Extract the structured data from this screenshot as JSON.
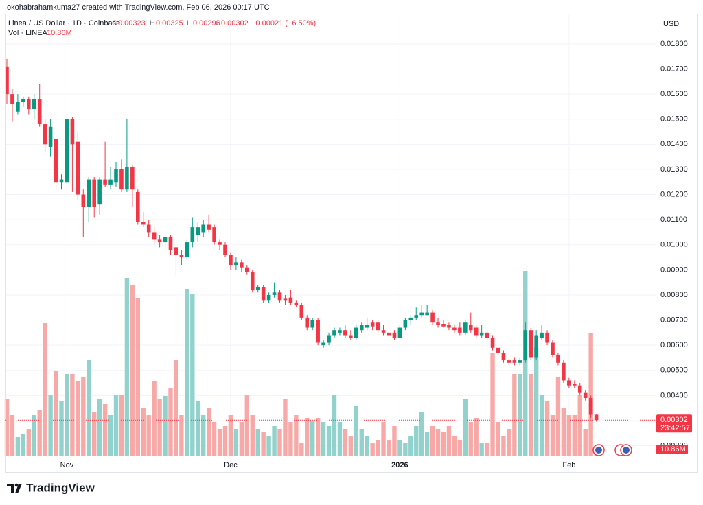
{
  "attribution": "okohabrahamkuma27 created with TradingView.com, Feb 06, 2026 00:17 UTC",
  "logo": "TradingView",
  "chart_data": {
    "type": "candlestick",
    "title": "Linea / US Dollar · 1D · Coinbase",
    "ohlc_labels": [
      "O",
      "H",
      "L",
      "C"
    ],
    "change": "−0.00021 (−6.50%)",
    "volume_title": "Vol · LINEA",
    "last_volume_label": "10.86M",
    "currency": "USD",
    "countdown": "23:42:57",
    "up_color": "#089981",
    "down_color": "#f23645",
    "volume_up_color": "#92d2cc",
    "volume_down_color": "#f7a9a7",
    "grid": true,
    "categories": [
      null,
      null,
      null,
      null,
      null,
      null,
      null,
      null,
      null,
      null,
      null,
      "Nov",
      null,
      null,
      null,
      null,
      null,
      null,
      null,
      null,
      null,
      null,
      null,
      null,
      null,
      null,
      null,
      null,
      null,
      null,
      null,
      null,
      null,
      null,
      null,
      null,
      null,
      null,
      null,
      null,
      null,
      "Dec",
      null,
      null,
      null,
      null,
      null,
      null,
      null,
      null,
      null,
      null,
      null,
      null,
      null,
      null,
      null,
      null,
      null,
      null,
      null,
      null,
      null,
      null,
      null,
      null,
      null,
      null,
      null,
      null,
      null,
      null,
      "2026",
      null,
      null,
      null,
      null,
      null,
      null,
      null,
      null,
      null,
      null,
      null,
      null,
      null,
      null,
      null,
      null,
      null,
      null,
      null,
      null,
      null,
      null,
      null,
      null,
      null,
      null,
      null,
      null,
      null,
      null,
      "Feb",
      null,
      null,
      null,
      null,
      null
    ],
    "open": [
      0.0171,
      0.016,
      0.0153,
      0.0157,
      0.0158,
      0.0154,
      0.0158,
      0.0148,
      0.0139,
      0.0142,
      0.0125,
      0.0125,
      0.015,
      0.0141,
      0.012,
      0.0115,
      0.0126,
      0.0116,
      0.0126,
      0.0124,
      0.0125,
      0.013,
      0.0122,
      0.0131,
      0.0121,
      0.0109,
      0.0108,
      0.0105,
      0.0102,
      0.0101,
      0.0103,
      0.0099,
      0.0096,
      0.0095,
      0.0101,
      0.0104,
      0.0105,
      0.0108,
      0.0107,
      0.0101,
      0.01,
      0.0096,
      0.0092,
      0.0093,
      0.0091,
      0.0089,
      0.0082,
      0.0083,
      0.0078,
      0.008,
      0.0081,
      0.00785,
      0.0079,
      0.0077,
      0.0076,
      0.0071,
      0.0067,
      0.007,
      0.006,
      0.0061,
      0.0064,
      0.0065,
      0.0066,
      0.0064,
      0.0063,
      0.0066,
      0.0067,
      0.0069,
      0.0069,
      0.0066,
      0.0065,
      0.0065,
      0.0063,
      0.0067,
      0.007,
      0.0071,
      0.0072,
      0.0072,
      0.0073,
      0.0069,
      0.00685,
      0.0068,
      0.0067,
      0.0067,
      0.0065,
      0.0068,
      0.0067,
      0.0064,
      0.0065,
      0.0063,
      0.0059,
      0.0057,
      0.0054,
      0.0054,
      0.0053,
      0.0054,
      0.0066,
      0.0055,
      0.0063,
      0.0065,
      0.0061,
      0.0056,
      0.0053,
      0.0046,
      0.00445,
      0.0044,
      0.0041,
      0.0039,
      0.00323
    ],
    "high": [
      0.0174,
      0.0162,
      0.016,
      0.0159,
      0.0159,
      0.016,
      0.0164,
      0.015,
      0.015,
      0.0143,
      0.0128,
      0.0151,
      0.0151,
      0.0145,
      0.0122,
      0.0127,
      0.0127,
      0.0127,
      0.0141,
      0.0131,
      0.0133,
      0.0134,
      0.015,
      0.0132,
      0.0122,
      0.0113,
      0.011,
      0.0107,
      0.0104,
      0.0104,
      0.0104,
      0.01,
      0.0098,
      0.0102,
      0.0111,
      0.0109,
      0.011,
      0.0112,
      0.0108,
      0.0102,
      0.0101,
      0.0097,
      0.0095,
      0.0094,
      0.0092,
      0.009,
      0.0084,
      0.0084,
      0.0081,
      0.0085,
      0.0082,
      0.008,
      0.0082,
      0.0078,
      0.0077,
      0.0072,
      0.0071,
      0.0071,
      0.0062,
      0.0065,
      0.0067,
      0.0067,
      0.0068,
      0.0066,
      0.0068,
      0.0069,
      0.0071,
      0.007,
      0.007,
      0.0068,
      0.0066,
      0.0066,
      0.0068,
      0.0071,
      0.0072,
      0.0075,
      0.0076,
      0.0076,
      0.0074,
      0.0071,
      0.007,
      0.0069,
      0.0068,
      0.0069,
      0.007,
      0.0073,
      0.0068,
      0.0068,
      0.0066,
      0.0064,
      0.006,
      0.0058,
      0.0055,
      0.0055,
      0.0055,
      0.0069,
      0.0067,
      0.0066,
      0.0068,
      0.0066,
      0.0062,
      0.0057,
      0.0054,
      0.0047,
      0.0046,
      0.0045,
      0.0042,
      0.004,
      0.00325
    ],
    "low": [
      0.0156,
      0.0149,
      0.0152,
      0.0155,
      0.0152,
      0.015,
      0.0147,
      0.0137,
      0.0135,
      0.0122,
      0.0122,
      0.0124,
      0.0121,
      0.0118,
      0.0103,
      0.0109,
      0.0111,
      0.0112,
      0.0123,
      0.0122,
      0.0123,
      0.0121,
      0.0121,
      0.0115,
      0.0108,
      0.0107,
      0.0103,
      0.01,
      0.0099,
      0.0098,
      0.0096,
      0.0087,
      0.0092,
      0.0094,
      0.0099,
      0.0101,
      0.0103,
      0.0105,
      0.01,
      0.0098,
      0.0095,
      0.009,
      0.009,
      0.0089,
      0.0088,
      0.0081,
      0.0081,
      0.0077,
      0.0077,
      0.0079,
      0.0077,
      0.0076,
      0.0076,
      0.0075,
      0.007,
      0.0066,
      0.0066,
      0.006,
      0.0059,
      0.006,
      0.0063,
      0.0064,
      0.0063,
      0.0062,
      0.0062,
      0.0065,
      0.0066,
      0.0066,
      0.0065,
      0.0064,
      0.0063,
      0.0062,
      0.0063,
      0.0066,
      0.0068,
      0.007,
      0.0071,
      0.0072,
      0.0068,
      0.0067,
      0.0067,
      0.0066,
      0.0065,
      0.0064,
      0.0064,
      0.0065,
      0.0063,
      0.0063,
      0.0062,
      0.0058,
      0.0056,
      0.0053,
      0.0052,
      0.0052,
      0.0052,
      0.0053,
      0.0054,
      0.0054,
      0.0062,
      0.006,
      0.0055,
      0.0052,
      0.0045,
      0.0043,
      0.0043,
      0.004,
      0.0038,
      0.0031,
      0.00296
    ],
    "close": [
      0.016,
      0.0156,
      0.0157,
      0.0158,
      0.0154,
      0.0158,
      0.0148,
      0.014,
      0.0147,
      0.0125,
      0.0126,
      0.015,
      0.014,
      0.012,
      0.0115,
      0.0126,
      0.0115,
      0.0126,
      0.0124,
      0.0126,
      0.013,
      0.0122,
      0.0131,
      0.0122,
      0.0109,
      0.0108,
      0.0105,
      0.0102,
      0.0101,
      0.0103,
      0.0098,
      0.0096,
      0.0095,
      0.0101,
      0.0107,
      0.0107,
      0.0108,
      0.0106,
      0.0101,
      0.01,
      0.0096,
      0.0092,
      0.0093,
      0.0091,
      0.0089,
      0.0082,
      0.0083,
      0.0078,
      0.008,
      0.0081,
      0.0078,
      0.0078,
      0.0077,
      0.0076,
      0.0071,
      0.0067,
      0.007,
      0.0061,
      0.0061,
      0.0064,
      0.0066,
      0.0066,
      0.0064,
      0.0063,
      0.0067,
      0.0068,
      0.0068,
      0.00675,
      0.0066,
      0.0065,
      0.0064,
      0.0063,
      0.0067,
      0.007,
      0.0071,
      0.0072,
      0.0073,
      0.0073,
      0.0069,
      0.0068,
      0.00675,
      0.0067,
      0.0066,
      0.0065,
      0.0069,
      0.0066,
      0.0064,
      0.0065,
      0.0063,
      0.0059,
      0.0057,
      0.0054,
      0.0053,
      0.0053,
      0.0054,
      0.0066,
      0.0055,
      0.0064,
      0.0065,
      0.0061,
      0.0056,
      0.0053,
      0.0046,
      0.0044,
      0.0044,
      0.0041,
      0.0039,
      0.00323,
      0.00302
    ],
    "volume": [
      84,
      60,
      28,
      32,
      40,
      60,
      68,
      194,
      90,
      124,
      80,
      120,
      120,
      110,
      116,
      140,
      64,
      84,
      76,
      60,
      90,
      90,
      260,
      250,
      230,
      70,
      60,
      110,
      84,
      88,
      100,
      140,
      60,
      244,
      236,
      80,
      60,
      70,
      50,
      40,
      44,
      60,
      40,
      50,
      90,
      60,
      40,
      36,
      30,
      44,
      40,
      84,
      50,
      60,
      20,
      56,
      52,
      56,
      50,
      44,
      90,
      50,
      40,
      30,
      74,
      40,
      30,
      20,
      24,
      50,
      24,
      44,
      24,
      20,
      30,
      44,
      64,
      36,
      44,
      40,
      36,
      44,
      30,
      24,
      84,
      50,
      56,
      20,
      20,
      150,
      50,
      30,
      40,
      120,
      120,
      270,
      120,
      160,
      90,
      80,
      60,
      116,
      70,
      60,
      60,
      90,
      40,
      180,
      10.86
    ],
    "ylim": [
      0.00095,
      0.0192
    ],
    "vol_ylim": [
      0,
      300
    ],
    "yticks": [
      {
        "value": 0.002,
        "label": "0.00200"
      },
      {
        "value": 0.003,
        "label": "0.00300"
      },
      {
        "value": 0.004,
        "label": "0.00400"
      },
      {
        "value": 0.005,
        "label": "0.00500"
      },
      {
        "value": 0.006,
        "label": "0.00600"
      },
      {
        "value": 0.007,
        "label": "0.00700"
      },
      {
        "value": 0.008,
        "label": "0.00800"
      },
      {
        "value": 0.009,
        "label": "0.00900"
      },
      {
        "value": 0.01,
        "label": "0.01000"
      },
      {
        "value": 0.011,
        "label": "0.01100"
      },
      {
        "value": 0.012,
        "label": "0.01200"
      },
      {
        "value": 0.013,
        "label": "0.01300"
      },
      {
        "value": 0.014,
        "label": "0.01400"
      },
      {
        "value": 0.015,
        "label": "0.01500"
      },
      {
        "value": 0.016,
        "label": "0.01600"
      },
      {
        "value": 0.017,
        "label": "0.01700"
      },
      {
        "value": 0.018,
        "label": "0.01800"
      }
    ]
  }
}
